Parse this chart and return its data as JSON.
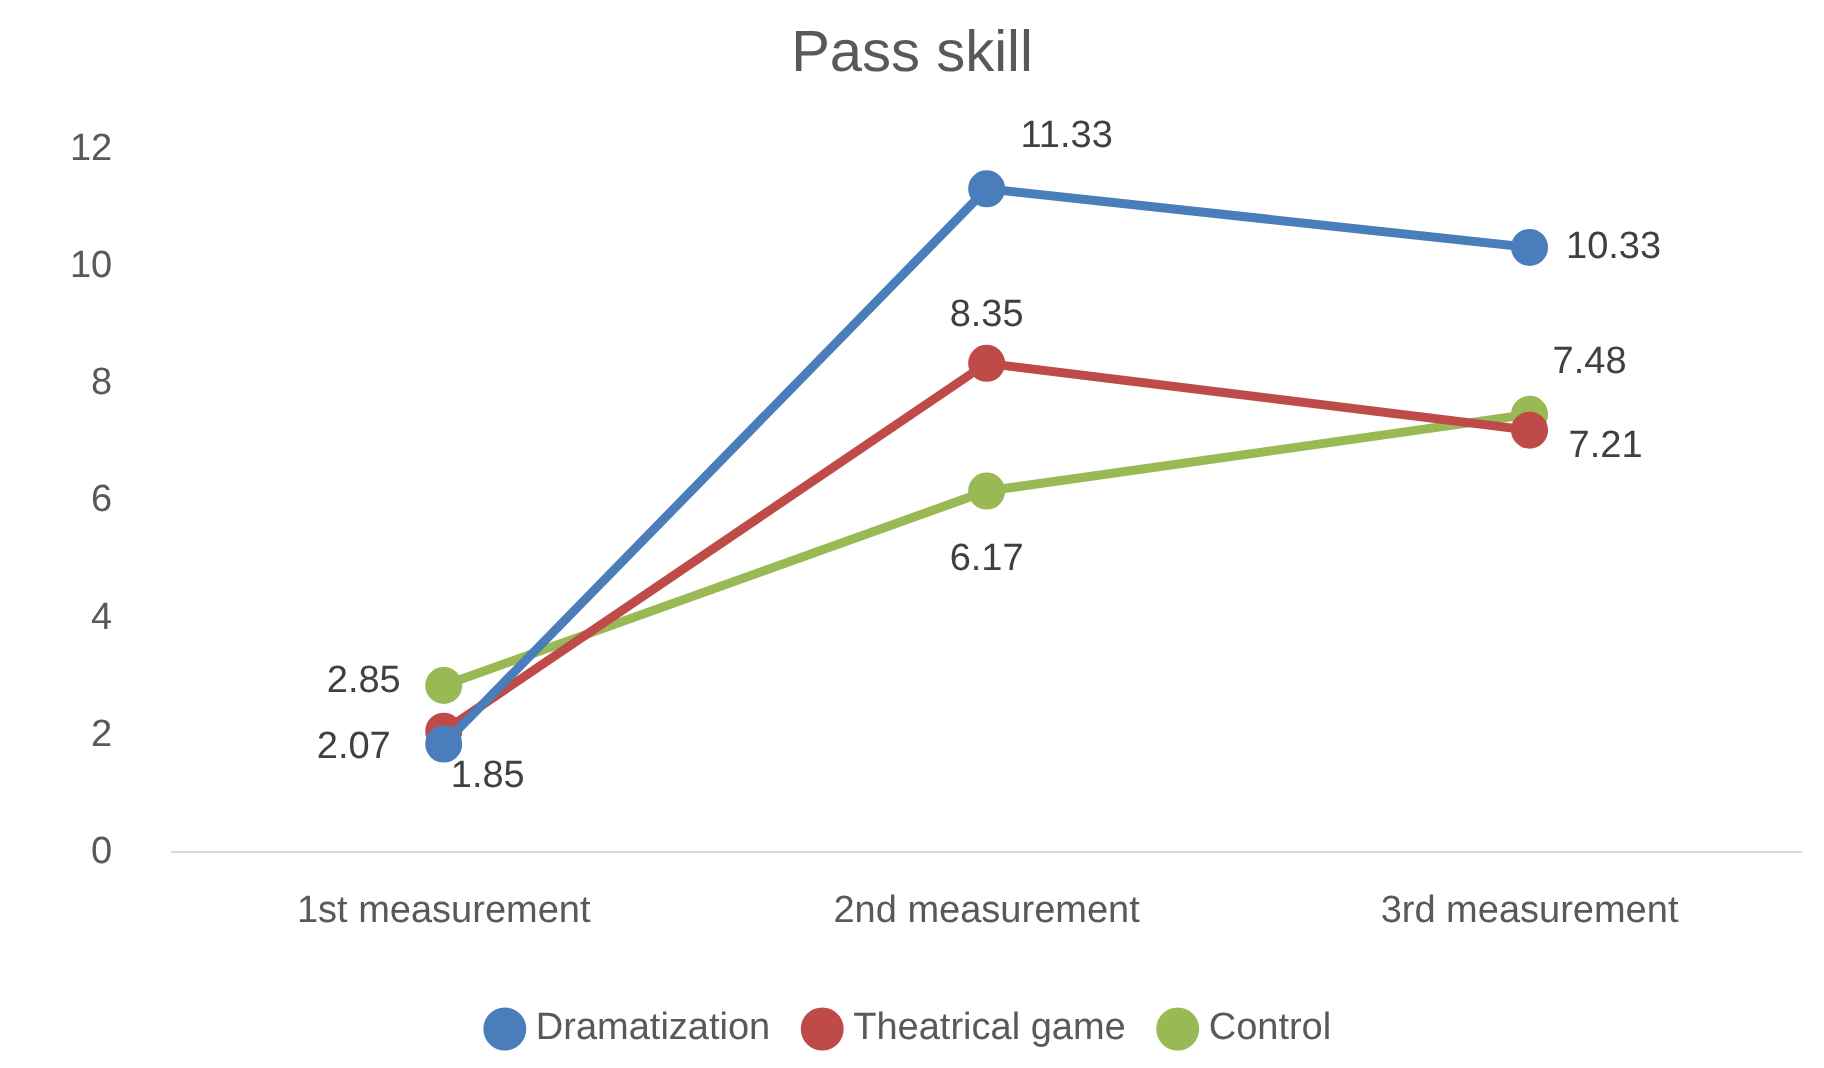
{
  "chart_data": {
    "type": "line",
    "title": "Pass skill",
    "categories": [
      "1st measurement",
      "2nd measurement",
      "3rd measurement"
    ],
    "series": [
      {
        "name": "Dramatization",
        "color": "#4a7ebb",
        "values": [
          1.85,
          11.33,
          10.33
        ]
      },
      {
        "name": "Theatrical game",
        "color": "#be4b48",
        "values": [
          2.07,
          8.35,
          7.21
        ]
      },
      {
        "name": "Control",
        "color": "#98b954",
        "values": [
          2.85,
          6.17,
          7.48
        ]
      }
    ],
    "ylim": [
      0,
      12
    ],
    "yticks": [
      0,
      2,
      4,
      6,
      8,
      10,
      12
    ],
    "grid": false,
    "legend": "bottom",
    "marker": "circle",
    "line_style": "solid",
    "data_labels": true
  }
}
